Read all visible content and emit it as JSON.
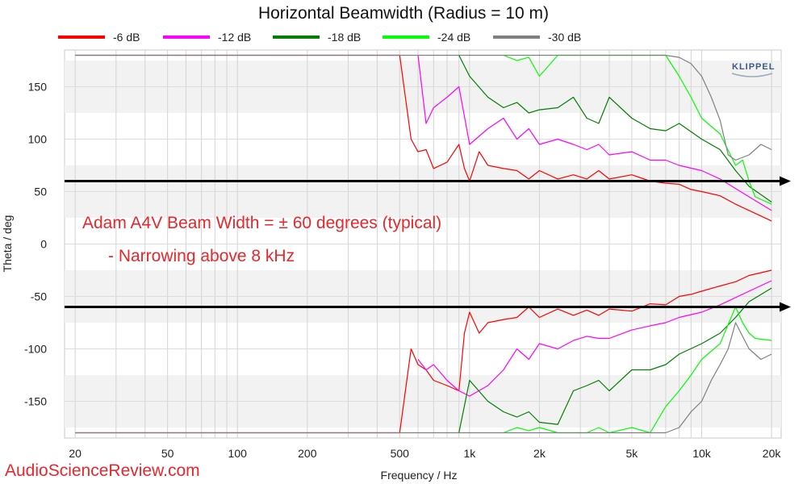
{
  "chart_data": {
    "type": "line",
    "title": "Horizontal Beamwidth (Radius = 10 m)",
    "xlabel": "Frequency / Hz",
    "ylabel": "Theta / deg",
    "xscale": "log",
    "xlim": [
      18,
      22000
    ],
    "ylim": [
      -185,
      185
    ],
    "x_ticks": [
      {
        "v": 20,
        "label": "20"
      },
      {
        "v": 50,
        "label": "50"
      },
      {
        "v": 100,
        "label": "100"
      },
      {
        "v": 200,
        "label": "200"
      },
      {
        "v": 500,
        "label": "500"
      },
      {
        "v": 1000,
        "label": "1k"
      },
      {
        "v": 2000,
        "label": "2k"
      },
      {
        "v": 5000,
        "label": "5k"
      },
      {
        "v": 10000,
        "label": "10k"
      },
      {
        "v": 20000,
        "label": "20k"
      }
    ],
    "y_ticks": [
      150,
      100,
      50,
      0,
      -50,
      -100,
      -150
    ],
    "legend_position": "top",
    "series": [
      {
        "name": "-6 dB",
        "color": "#ff0000",
        "x": [
          20,
          500,
          560,
          600,
          650,
          700,
          800,
          900,
          950,
          1000,
          1100,
          1200,
          1400,
          1600,
          1800,
          2000,
          2400,
          2800,
          3200,
          3600,
          4000,
          5000,
          6000,
          7000,
          8000,
          9000,
          10000,
          12000,
          14000,
          16000,
          20000
        ],
        "upper": [
          180,
          180,
          100,
          88,
          90,
          72,
          78,
          95,
          72,
          60,
          88,
          75,
          72,
          70,
          62,
          70,
          62,
          66,
          62,
          70,
          62,
          66,
          60,
          58,
          57,
          52,
          50,
          46,
          38,
          32,
          22
        ],
        "lower": [
          -180,
          -180,
          -100,
          -115,
          -120,
          -130,
          -135,
          -140,
          -85,
          -65,
          -85,
          -75,
          -72,
          -70,
          -60,
          -70,
          -62,
          -68,
          -63,
          -68,
          -62,
          -64,
          -57,
          -58,
          -50,
          -48,
          -45,
          -40,
          -36,
          -30,
          -25
        ]
      },
      {
        "name": "-12 dB",
        "color": "#ff00ff",
        "x": [
          600,
          650,
          700,
          800,
          900,
          1000,
          1200,
          1400,
          1600,
          1800,
          2000,
          2400,
          2800,
          3200,
          3600,
          4000,
          5000,
          6000,
          7000,
          8000,
          10000,
          12000,
          16000,
          20000
        ],
        "upper": [
          180,
          115,
          130,
          140,
          150,
          95,
          110,
          120,
          100,
          110,
          95,
          100,
          95,
          90,
          95,
          85,
          88,
          80,
          80,
          75,
          70,
          62,
          45,
          32
        ],
        "lower": [
          -110,
          -120,
          -115,
          -130,
          -140,
          -145,
          -135,
          -120,
          -100,
          -110,
          -95,
          -100,
          -92,
          -88,
          -90,
          -90,
          -82,
          -78,
          -75,
          -70,
          -65,
          -58,
          -45,
          -35
        ]
      },
      {
        "name": "-18 dB",
        "color": "#007f00",
        "x": [
          900,
          1000,
          1200,
          1400,
          1600,
          1800,
          2000,
          2400,
          2800,
          3200,
          3600,
          4000,
          5000,
          6000,
          7000,
          8000,
          10000,
          12000,
          14000,
          16000,
          20000
        ],
        "upper": [
          180,
          160,
          140,
          130,
          135,
          125,
          128,
          130,
          140,
          120,
          115,
          140,
          120,
          110,
          108,
          115,
          100,
          90,
          70,
          55,
          40
        ],
        "lower": [
          -180,
          -130,
          -150,
          -160,
          -165,
          -160,
          -170,
          -172,
          -140,
          -135,
          -130,
          -140,
          -120,
          -120,
          -115,
          -105,
          -95,
          -85,
          -70,
          -55,
          -42
        ]
      },
      {
        "name": "-24 dB",
        "color": "#00ff00",
        "x": [
          1400,
          1600,
          1800,
          2000,
          2400,
          2800,
          3200,
          3600,
          4000,
          5000,
          6000,
          7000,
          8000,
          9000,
          10000,
          12000,
          14000,
          15000,
          16000,
          17000,
          20000
        ],
        "upper": [
          180,
          175,
          178,
          160,
          180,
          180,
          180,
          180,
          180,
          180,
          180,
          180,
          160,
          140,
          120,
          105,
          75,
          80,
          60,
          45,
          38
        ],
        "lower": [
          -180,
          -175,
          -178,
          -175,
          -180,
          -180,
          -180,
          -175,
          -180,
          -175,
          -180,
          -155,
          -140,
          -125,
          -110,
          -95,
          -60,
          -75,
          -85,
          -90,
          -92
        ]
      },
      {
        "name": "-30 dB",
        "color": "#7f7f7f",
        "x": [
          20,
          7000,
          8000,
          9000,
          10000,
          11000,
          12000,
          13000,
          14000,
          16000,
          18000,
          20000
        ],
        "upper": [
          180,
          180,
          178,
          172,
          160,
          140,
          118,
          85,
          80,
          85,
          95,
          90
        ],
        "lower": [
          -180,
          -180,
          -175,
          -160,
          -150,
          -130,
          -115,
          -100,
          -75,
          -100,
          -110,
          -105
        ]
      }
    ],
    "reference_lines": [
      {
        "y": 60,
        "color": "#000000"
      },
      {
        "y": -60,
        "color": "#000000"
      }
    ],
    "annotations": [
      "Adam A4V Beam Width = ± 60 degrees (typical)",
      "- Narrowing above 8 kHz"
    ]
  },
  "watermark": "AudioScienceReview.com",
  "logo": "KLIPPEL"
}
